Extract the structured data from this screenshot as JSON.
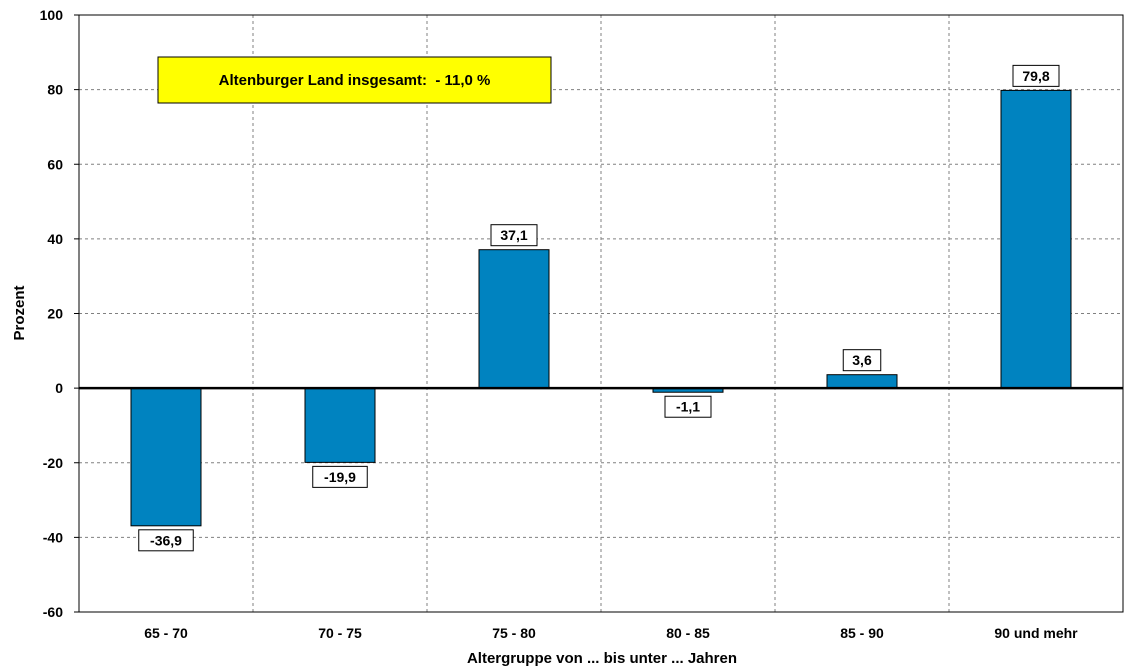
{
  "chart_data": {
    "type": "bar",
    "categories": [
      "65 - 70",
      "70 - 75",
      "75 - 80",
      "80 - 85",
      "85 - 90",
      "90 und mehr"
    ],
    "values": [
      -36.9,
      -19.9,
      37.1,
      -1.1,
      3.6,
      79.8
    ],
    "data_labels": [
      "-36,9",
      "-19,9",
      "37,1",
      "-1,1",
      "3,6",
      "79,8"
    ],
    "title": "",
    "xlabel": "Altergruppe von ... bis unter ... Jahren",
    "ylabel": "Prozent",
    "ylim": [
      -60,
      100
    ],
    "yticks": [
      100,
      80,
      60,
      40,
      20,
      0,
      -20,
      -40,
      -60
    ],
    "grid": true,
    "legend": "none",
    "annotation": "Altenburger Land insgesamt:  - 11,0 %",
    "colors": {
      "bar": "#0083c0",
      "annotation_bg": "#ffff00",
      "grid": "#808080",
      "zero_line": "#000000"
    }
  }
}
